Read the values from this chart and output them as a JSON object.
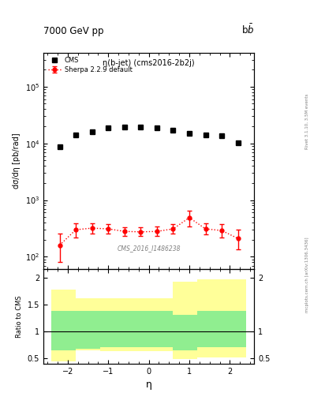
{
  "title_left": "7000 GeV pp",
  "title_right": "b$\\bar{b}$",
  "plot_title": "η(b-jet) (cms2016-2b2j)",
  "right_label_top": "Rivet 3.1.10, 3.5M events",
  "watermark": "mcplots.cern.ch [arXiv:1306.3436]",
  "cms_label": "CMS_2016_I1486238",
  "ylabel_main": "dσ/dη [pb/rad]",
  "ylabel_ratio": "Ratio to CMS",
  "xlabel": "η",
  "ylim_main": [
    60,
    400000
  ],
  "ylim_ratio": [
    0.4,
    2.15
  ],
  "xlim": [
    -2.6,
    2.6
  ],
  "cms_eta_edges": [
    -2.4,
    -2.0,
    -1.6,
    -1.2,
    -0.8,
    -0.4,
    0.0,
    0.4,
    0.8,
    1.2,
    1.6,
    2.0,
    2.4
  ],
  "cms_values": [
    8800,
    14000,
    16000,
    18500,
    19200,
    19500,
    18500,
    17000,
    15000,
    14200,
    13500,
    10200
  ],
  "sherpa_eta": [
    -2.2,
    -1.8,
    -1.4,
    -1.0,
    -0.6,
    -0.2,
    0.2,
    0.6,
    1.0,
    1.4,
    1.8,
    2.2
  ],
  "sherpa_values": [
    160,
    300,
    320,
    310,
    280,
    275,
    280,
    310,
    490,
    310,
    290,
    210
  ],
  "sherpa_yerr_lo": [
    80,
    80,
    65,
    55,
    45,
    45,
    50,
    55,
    150,
    65,
    70,
    75
  ],
  "sherpa_yerr_hi": [
    95,
    90,
    75,
    65,
    55,
    55,
    60,
    70,
    170,
    75,
    85,
    95
  ],
  "ratio_bins_edges": [
    -2.4,
    -1.8,
    -1.2,
    -0.6,
    0.6,
    1.2,
    2.4
  ],
  "ratio_green_lo": [
    0.65,
    0.68,
    0.7,
    0.7,
    0.65,
    0.7
  ],
  "ratio_green_hi": [
    1.38,
    1.38,
    1.38,
    1.38,
    1.3,
    1.38
  ],
  "ratio_yellow_lo": [
    0.44,
    0.64,
    0.63,
    0.63,
    0.48,
    0.52
  ],
  "ratio_yellow_hi": [
    1.78,
    1.62,
    1.62,
    1.62,
    1.92,
    1.96
  ],
  "cms_color": "black",
  "sherpa_color": "red",
  "green_color": "#90EE90",
  "yellow_color": "#FFFF99",
  "background_color": "white"
}
